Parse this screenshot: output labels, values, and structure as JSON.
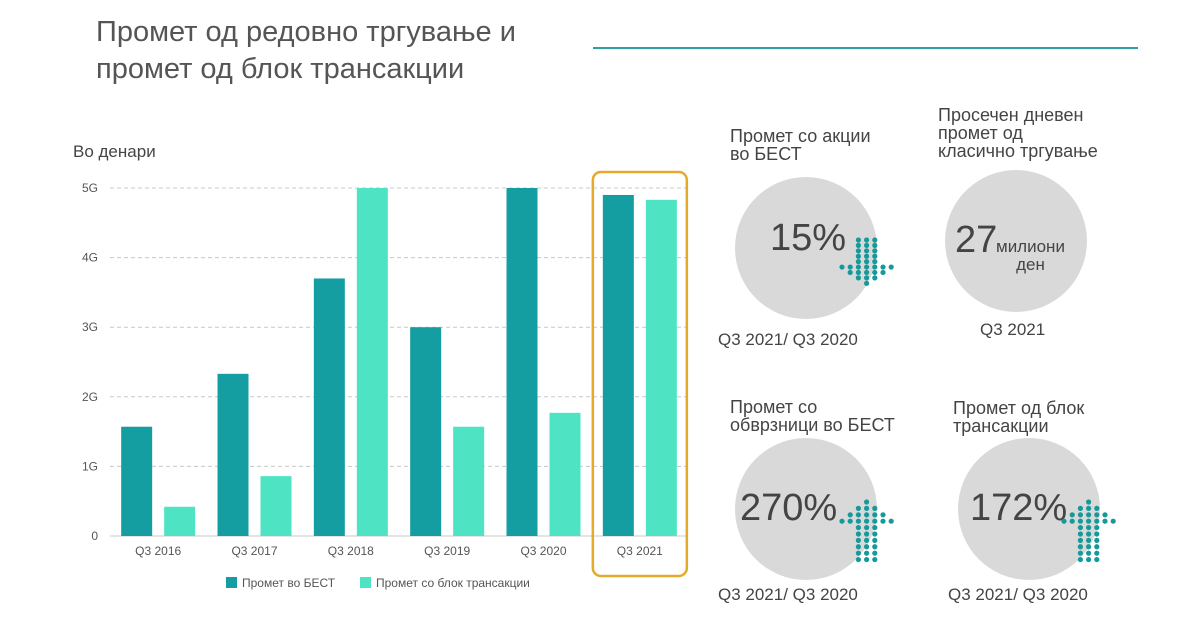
{
  "title": "Промет од редовно тргување и промет од блок трансакции",
  "colors": {
    "accent": "#2aa0a6",
    "series_primary": "#159ea2",
    "series_secondary": "#4ee3c2",
    "highlight_frame": "#e5a92b",
    "dot_arrow": "#16999a",
    "circle": "#d9d9d9"
  },
  "chart_data": {
    "type": "bar",
    "ylabel": "Во денари",
    "categories": [
      "Q3 2016",
      "Q3 2017",
      "Q3 2018",
      "Q3 2019",
      "Q3 2020",
      "Q3 2021"
    ],
    "series": [
      {
        "name": "Промет во БЕСТ",
        "values": [
          1.57,
          2.33,
          3.7,
          3.0,
          5.0,
          4.9
        ]
      },
      {
        "name": "Промет со блок трансакции",
        "values": [
          0.42,
          0.86,
          5.0,
          1.57,
          1.77,
          4.83
        ]
      }
    ],
    "ylim": [
      0,
      5
    ],
    "yticks": [
      {
        "value": 0,
        "label": "0"
      },
      {
        "value": 1,
        "label": "1G"
      },
      {
        "value": 2,
        "label": "2G"
      },
      {
        "value": 3,
        "label": "3G"
      },
      {
        "value": 4,
        "label": "4G"
      },
      {
        "value": 5,
        "label": "5G"
      }
    ],
    "grid": true,
    "highlight_category": "Q3 2021",
    "legend_position": "bottom"
  },
  "kpis": [
    {
      "label": "Промет со акции\nво БЕСТ",
      "value": "15%",
      "unit": "",
      "period": "Q3 2021/ Q3 2020",
      "icon": "dotted-arrow-down-icon"
    },
    {
      "label": "Просечен дневен\nпромет од\nкласично тргување",
      "value": "27",
      "unit": "милиони\nден",
      "period": "Q3 2021",
      "icon": ""
    },
    {
      "label": "Промет со\nобврзници во БЕСТ",
      "value": "270%",
      "unit": "",
      "period": "Q3 2021/ Q3 2020",
      "icon": "dotted-arrow-up-icon"
    },
    {
      "label": "Промет од блок\nтрансакции",
      "value": "172%",
      "unit": "",
      "period": "Q3 2021/ Q3 2020",
      "icon": "dotted-arrow-up-icon"
    }
  ]
}
